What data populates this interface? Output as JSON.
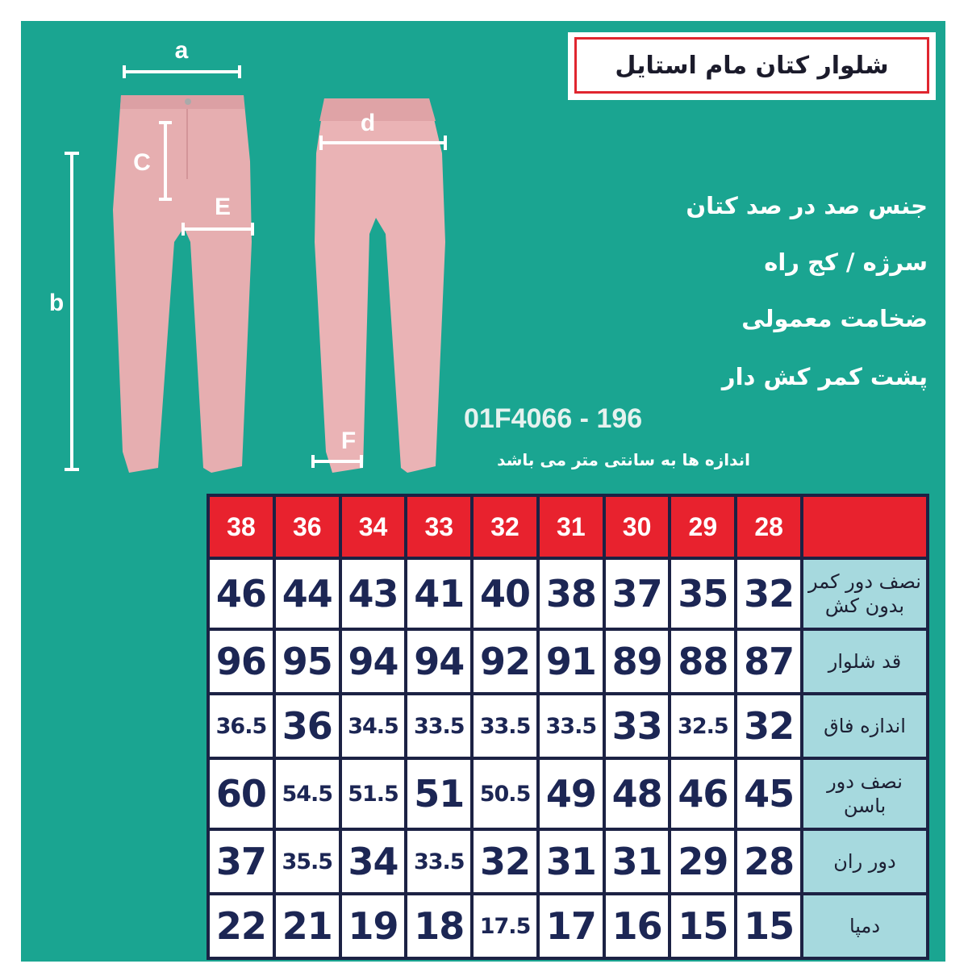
{
  "title": "شلوار کتان مام استایل",
  "features": [
    "جنس صد در صد کتان",
    "سرژه / کج راه",
    "ضخامت معمولی",
    "پشت کمر کش دار"
  ],
  "product_code": "01F4066 - 196",
  "units_note": "اندازه ها به سانتی متر می باشد",
  "diagram_labels": {
    "a": "a",
    "b": "b",
    "c": "C",
    "d": "d",
    "e": "E",
    "f": "F"
  },
  "colors": {
    "background": "#1aa591",
    "header": "#e8222e",
    "label_cell": "#a6d9de",
    "text_dark": "#1c2654",
    "pants": "#e6aeb0"
  },
  "size_table": {
    "sizes": [
      "28",
      "29",
      "30",
      "31",
      "32",
      "33",
      "34",
      "36",
      "38"
    ],
    "rows": [
      {
        "label": "نصف دور کمر بدون کش",
        "values": [
          "32",
          "35",
          "37",
          "38",
          "40",
          "41",
          "43",
          "44",
          "46"
        ]
      },
      {
        "label": "قد شلوار",
        "values": [
          "87",
          "88",
          "89",
          "91",
          "92",
          "94",
          "94",
          "95",
          "96"
        ]
      },
      {
        "label": "اندازه فاق",
        "values": [
          "32",
          "32.5",
          "33",
          "33.5",
          "33.5",
          "33.5",
          "34.5",
          "36",
          "36.5"
        ]
      },
      {
        "label": "نصف دور باسن",
        "values": [
          "45",
          "46",
          "48",
          "49",
          "50.5",
          "51",
          "51.5",
          "54.5",
          "60"
        ]
      },
      {
        "label": "دور ران",
        "values": [
          "28",
          "29",
          "31",
          "31",
          "32",
          "33.5",
          "34",
          "35.5",
          "37"
        ]
      },
      {
        "label": "دمپا",
        "values": [
          "15",
          "15",
          "16",
          "17",
          "17.5",
          "18",
          "19",
          "21",
          "22"
        ]
      }
    ]
  }
}
